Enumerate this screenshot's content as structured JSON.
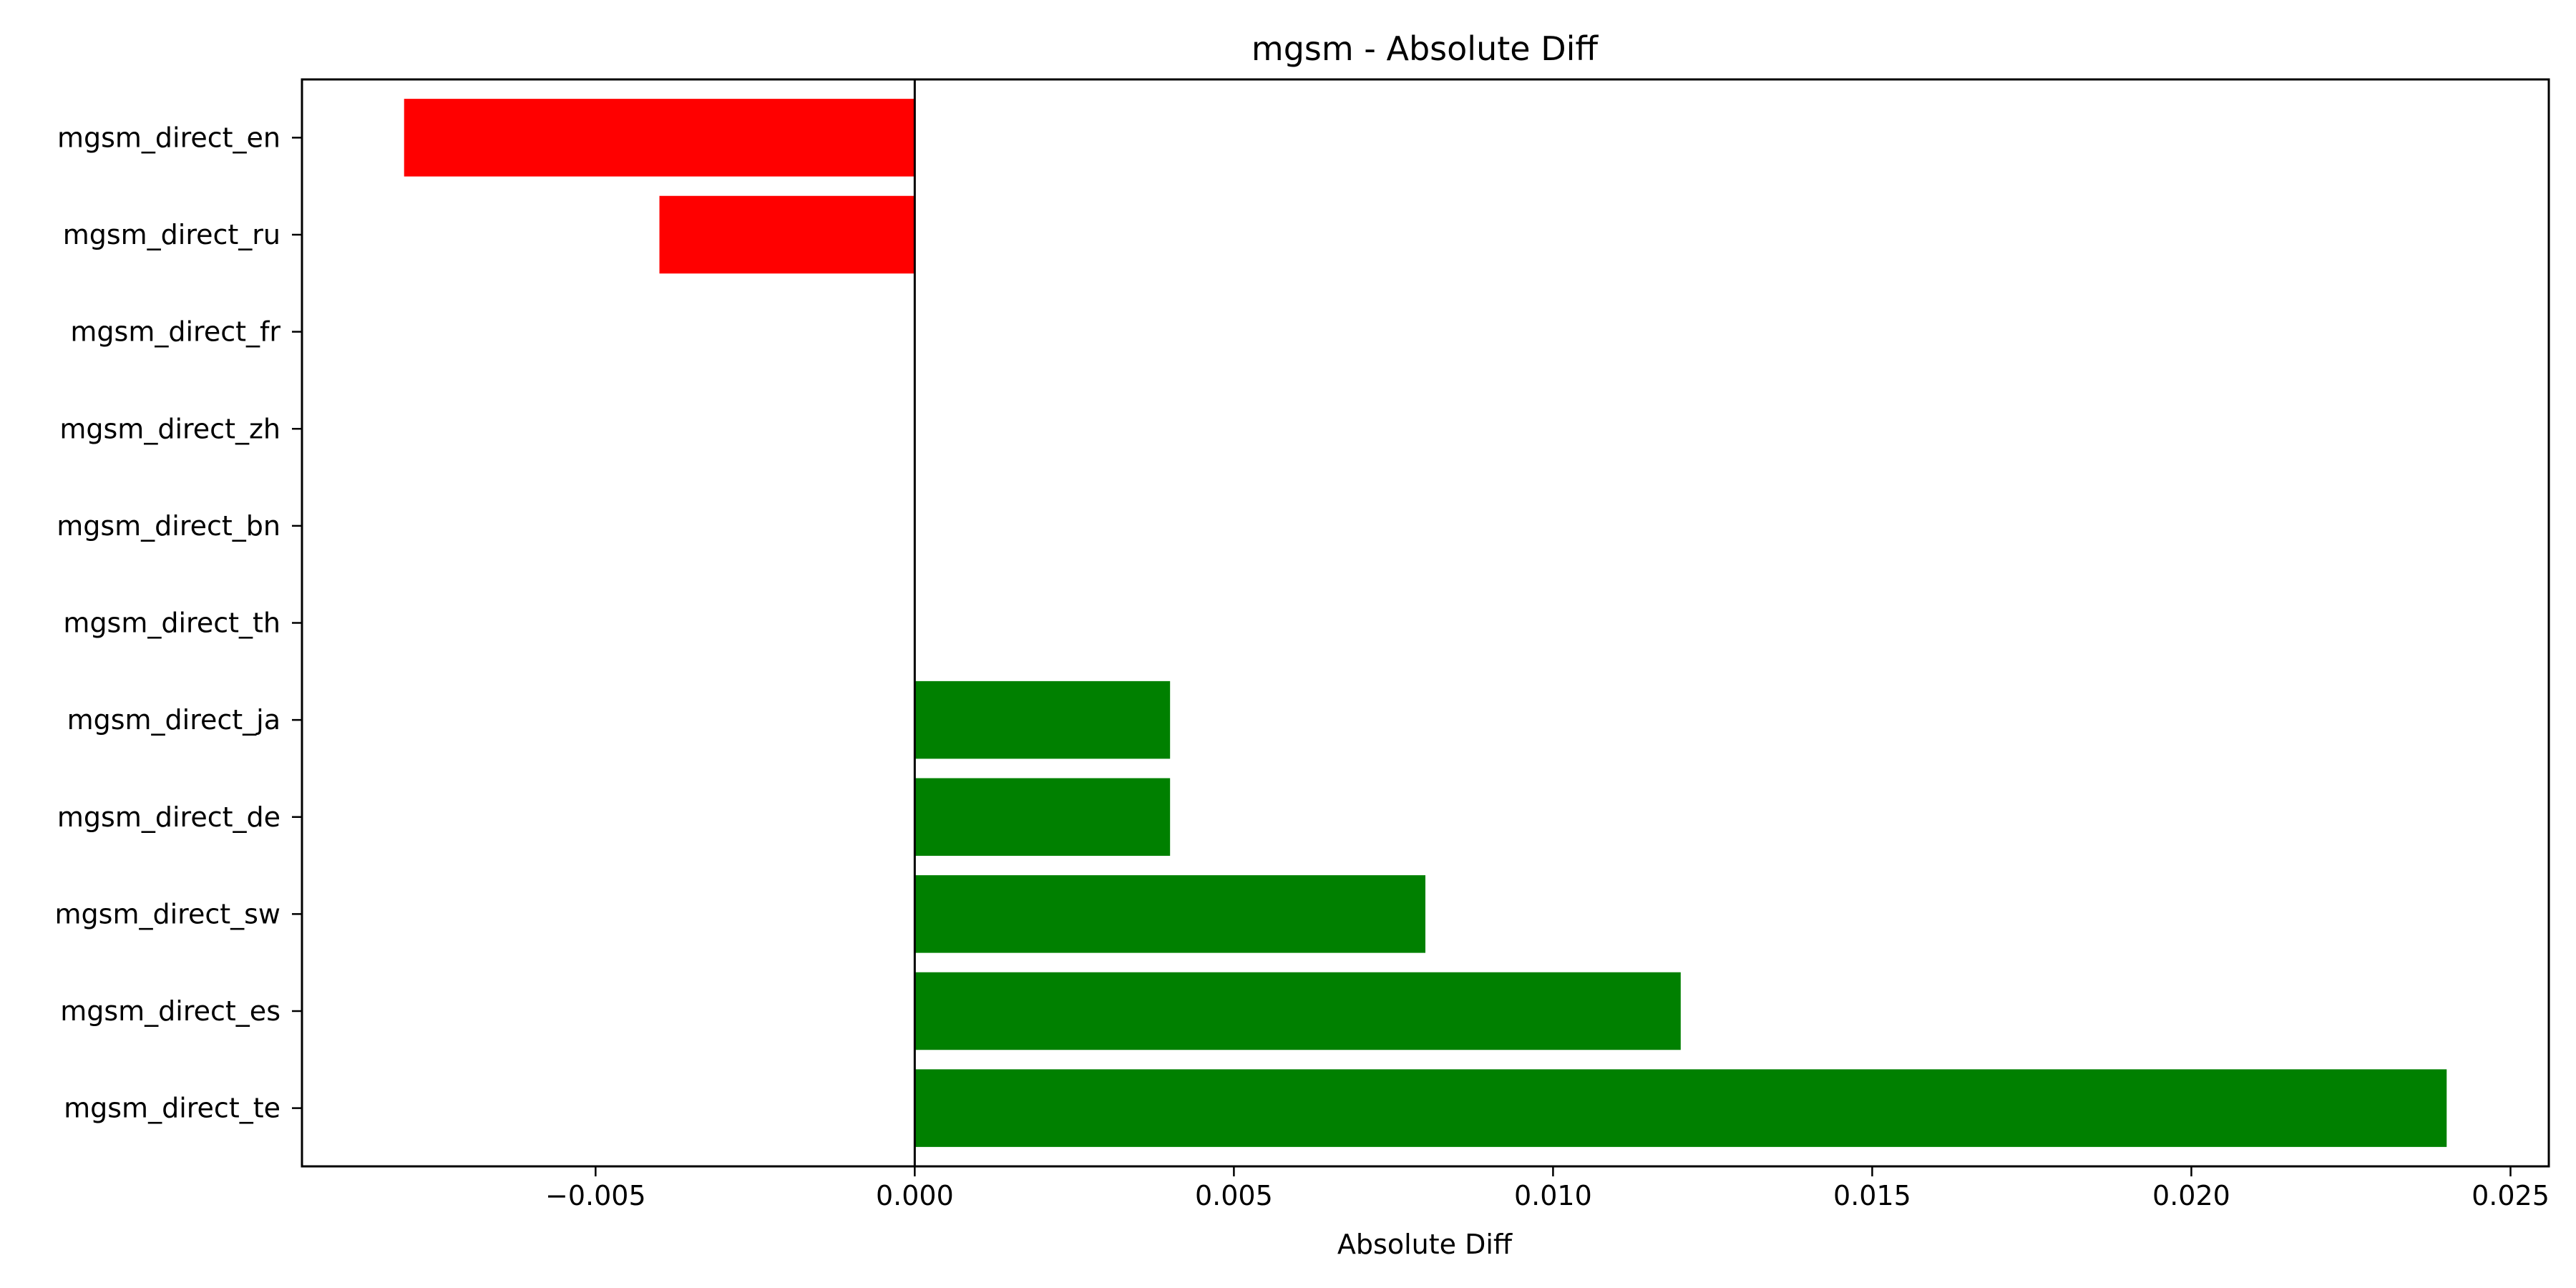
{
  "chart_data": {
    "type": "bar",
    "orientation": "horizontal",
    "title": "mgsm - Absolute Diff",
    "xlabel": "Absolute Diff",
    "ylabel": "",
    "categories": [
      "mgsm_direct_en",
      "mgsm_direct_ru",
      "mgsm_direct_fr",
      "mgsm_direct_zh",
      "mgsm_direct_bn",
      "mgsm_direct_th",
      "mgsm_direct_ja",
      "mgsm_direct_de",
      "mgsm_direct_sw",
      "mgsm_direct_es",
      "mgsm_direct_te"
    ],
    "values": [
      -0.008,
      -0.004,
      0,
      0,
      0,
      0,
      0.004,
      0.004,
      0.008,
      0.012,
      0.024
    ],
    "xlim": [
      -0.0096,
      0.0256
    ],
    "xticks": [
      -0.005,
      0,
      0.005,
      0.01,
      0.015,
      0.02,
      0.025
    ],
    "xtick_labels": [
      "−0.005",
      "0.000",
      "0.005",
      "0.010",
      "0.015",
      "0.020",
      "0.025"
    ],
    "grid": false,
    "legend": "none",
    "colors": {
      "negative": "#ff0000",
      "positive": "#008000",
      "zero_line": "#000000",
      "frame": "#000000"
    }
  }
}
